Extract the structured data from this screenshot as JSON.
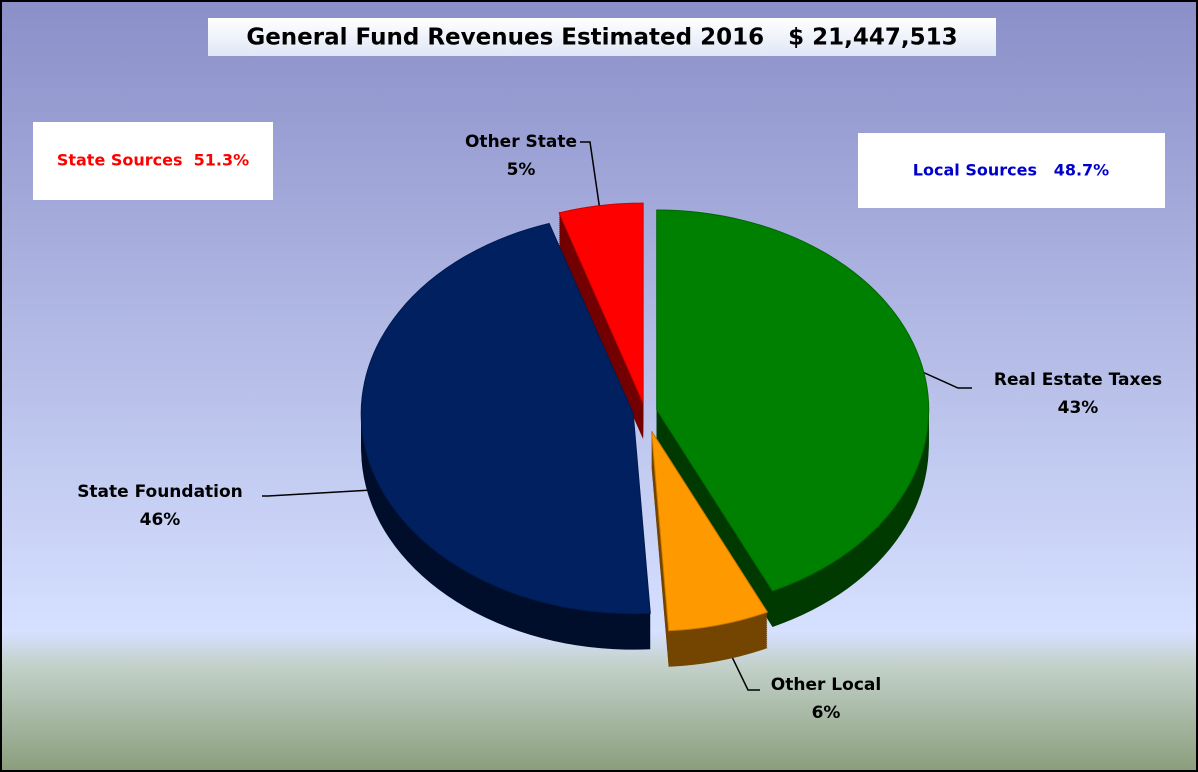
{
  "chart_data": {
    "type": "pie",
    "title": "General Fund Revenues Estimated 2016   $ 21,447,513",
    "annotations": [
      "State Sources  51.3%",
      "Local Sources   48.7%"
    ],
    "categories": [
      "Real Estate Taxes",
      "Other Local",
      "State Foundation",
      "Other State"
    ],
    "values": [
      43,
      6,
      46,
      5
    ],
    "value_labels": [
      "43%",
      "6%",
      "46%",
      "5%"
    ],
    "colors": [
      "#008000",
      "#ff9900",
      "#002060",
      "#ff0000"
    ]
  }
}
